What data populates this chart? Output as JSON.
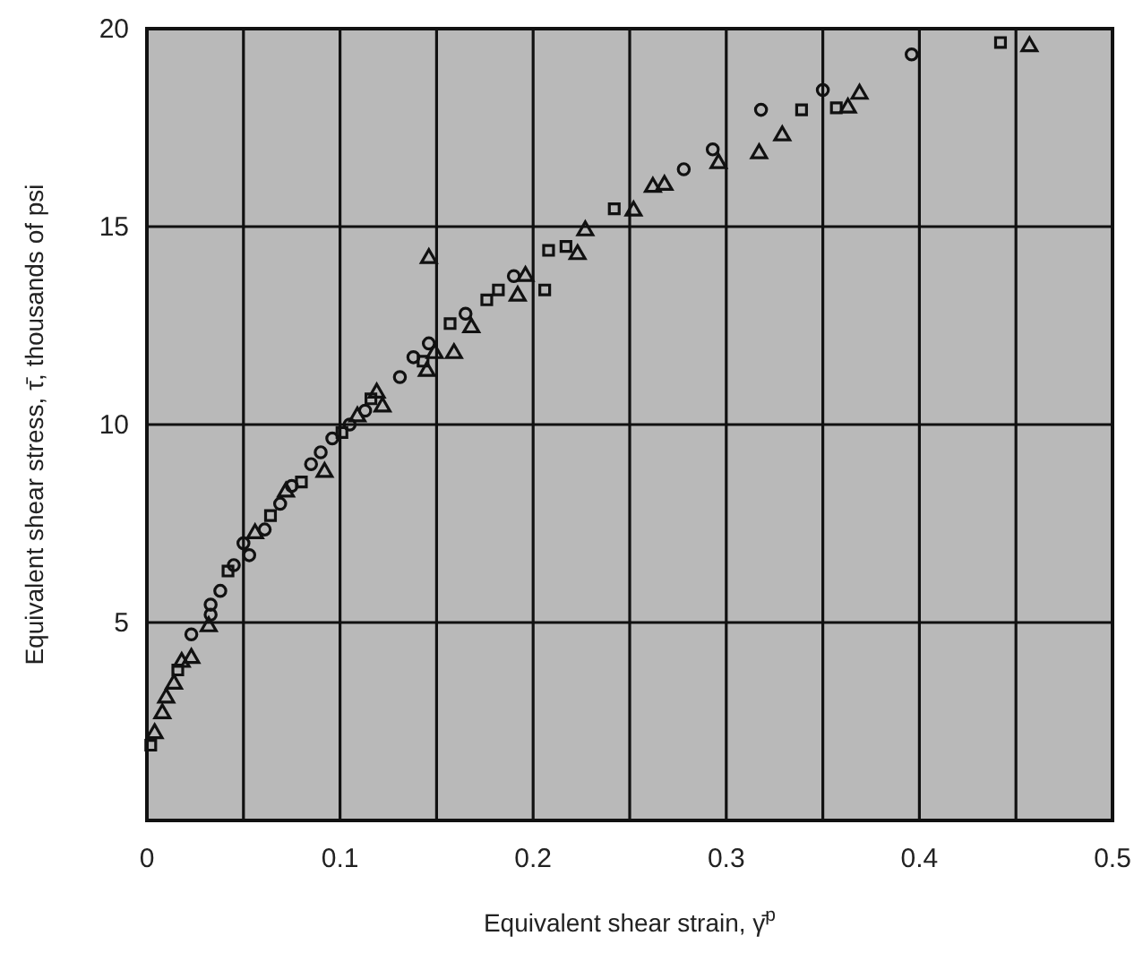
{
  "chart_data": {
    "type": "scatter",
    "xlabel": "Equivalent shear strain, γ̄$^{p}$",
    "ylabel": "Equivalent shear stress, τ̄, thousands of psi",
    "xlim": [
      0,
      0.5
    ],
    "ylim": [
      0,
      20
    ],
    "xticks": [
      0,
      {
        "value": 0.05,
        "label": null
      },
      0.1,
      {
        "value": 0.15,
        "label": null
      },
      0.2,
      {
        "value": 0.25,
        "label": null
      },
      0.3,
      {
        "value": 0.35,
        "label": null
      },
      0.4,
      {
        "value": 0.45,
        "label": null
      },
      0.5
    ],
    "yticks": [
      5,
      10,
      15,
      20
    ],
    "grid": true,
    "series": [
      {
        "marker": "circle",
        "color": "#111111",
        "x": [
          0.023,
          0.033,
          0.033,
          0.038,
          0.045,
          0.05,
          0.053,
          0.061,
          0.069,
          0.075,
          0.085,
          0.09,
          0.096,
          0.105,
          0.113,
          0.131,
          0.138,
          0.146,
          0.165,
          0.19,
          0.278,
          0.293,
          0.318,
          0.35,
          0.396
        ],
        "values": [
          4.7,
          5.2,
          5.45,
          5.8,
          6.45,
          7.0,
          6.7,
          7.35,
          8.0,
          8.45,
          9.0,
          9.3,
          9.65,
          10.0,
          10.35,
          11.2,
          11.7,
          12.05,
          12.8,
          13.75,
          16.45,
          16.95,
          17.95,
          18.45,
          19.35
        ]
      },
      {
        "marker": "square",
        "color": "#111111",
        "x": [
          0.002,
          0.016,
          0.042,
          0.064,
          0.08,
          0.101,
          0.116,
          0.143,
          0.157,
          0.176,
          0.182,
          0.206,
          0.208,
          0.217,
          0.242,
          0.339,
          0.357,
          0.442
        ],
        "values": [
          1.9,
          3.8,
          6.3,
          7.7,
          8.55,
          9.8,
          10.65,
          11.6,
          12.55,
          13.15,
          13.4,
          13.4,
          14.4,
          14.5,
          15.45,
          17.95,
          18.0,
          19.65
        ]
      },
      {
        "marker": "triangle",
        "color": "#111111",
        "x": [
          0.004,
          0.008,
          0.01,
          0.014,
          0.018,
          0.023,
          0.032,
          0.056,
          0.072,
          0.092,
          0.109,
          0.119,
          0.122,
          0.145,
          0.146,
          0.149,
          0.159,
          0.168,
          0.192,
          0.196,
          0.223,
          0.227,
          0.252,
          0.262,
          0.268,
          0.296,
          0.317,
          0.329,
          0.363,
          0.369,
          0.457
        ],
        "values": [
          2.2,
          2.7,
          3.1,
          3.45,
          4.0,
          4.1,
          4.9,
          7.25,
          8.3,
          8.8,
          10.2,
          10.8,
          10.45,
          11.35,
          14.2,
          11.8,
          11.8,
          12.45,
          13.25,
          13.75,
          14.3,
          14.9,
          15.4,
          16.0,
          16.05,
          16.6,
          16.85,
          17.3,
          18.0,
          18.35,
          19.55
        ]
      }
    ]
  }
}
